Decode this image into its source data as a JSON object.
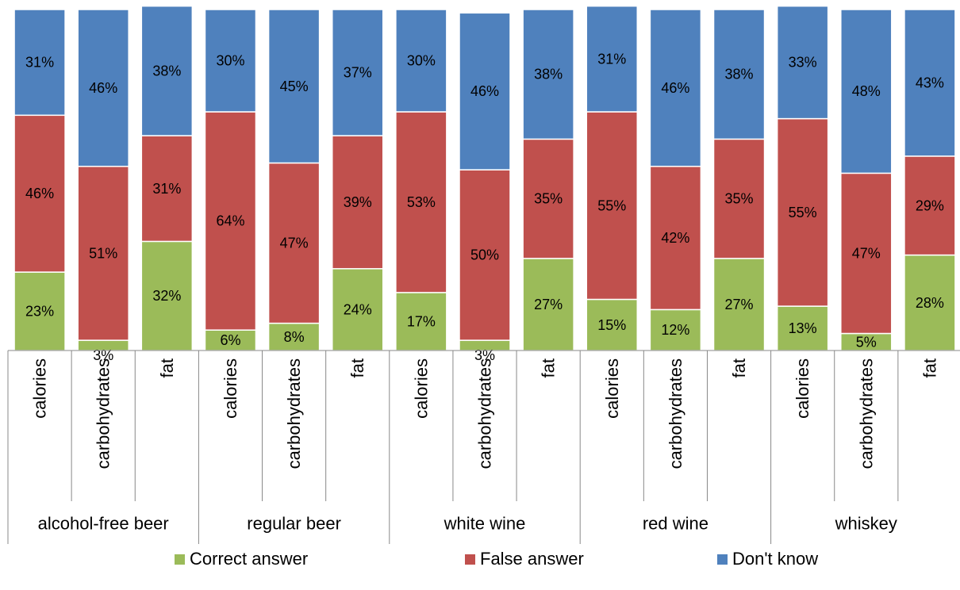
{
  "chart_data": {
    "type": "bar",
    "stacked": "percent",
    "groups": [
      "alcohol-free beer",
      "regular beer",
      "white wine",
      "red wine",
      "whiskey"
    ],
    "subcategories": [
      "calories",
      "carbohydrates",
      "fat"
    ],
    "categories": [
      "calories",
      "carbohydrates",
      "fat",
      "calories",
      "carbohydrates",
      "fat",
      "calories",
      "carbohydrates",
      "fat",
      "calories",
      "carbohydrates",
      "fat",
      "calories",
      "carbohydrates",
      "fat"
    ],
    "series": [
      {
        "name": "Correct answer",
        "color": "#9BBB59",
        "values": [
          23,
          3,
          32,
          6,
          8,
          24,
          17,
          3,
          27,
          15,
          12,
          27,
          13,
          5,
          28
        ]
      },
      {
        "name": "False answer",
        "color": "#C0504D",
        "values": [
          46,
          51,
          31,
          64,
          47,
          39,
          53,
          50,
          35,
          55,
          42,
          35,
          55,
          47,
          29
        ]
      },
      {
        "name": "Don't know",
        "color": "#4F81BD",
        "values": [
          31,
          46,
          38,
          30,
          45,
          37,
          30,
          46,
          38,
          31,
          46,
          38,
          33,
          48,
          43
        ]
      }
    ],
    "value_suffix": "%",
    "ylim": [
      0,
      100
    ],
    "legend_position": "bottom",
    "grid": false
  }
}
